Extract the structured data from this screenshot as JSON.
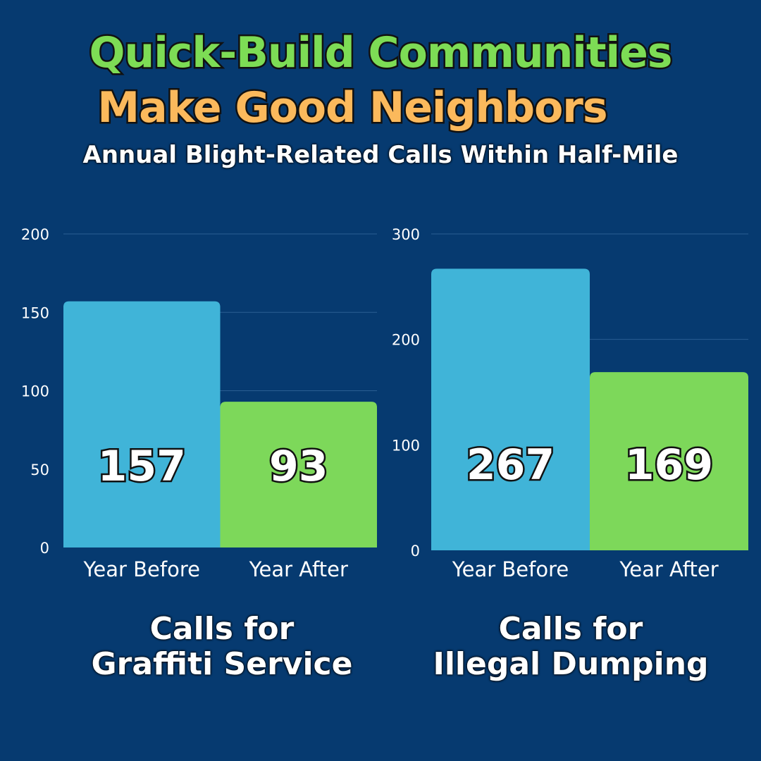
{
  "header": {
    "title_line1": "Quick-Build Communities",
    "title_line2": "Make Good Neighbors",
    "subtitle": "Annual Blight-Related Calls Within Half-Mile"
  },
  "colors": {
    "before": "#40b4d8",
    "after": "#7dd85a",
    "grid": "#2a5e92"
  },
  "chart_data": [
    {
      "type": "bar",
      "categories": [
        "Year Before",
        "Year After"
      ],
      "values": [
        157,
        93
      ],
      "ylim": [
        0,
        200
      ],
      "yticks": [
        0,
        50,
        100,
        150,
        200
      ],
      "caption_line1": "Calls for",
      "caption_line2": "Graffiti Service"
    },
    {
      "type": "bar",
      "categories": [
        "Year Before",
        "Year After"
      ],
      "values": [
        267,
        169
      ],
      "ylim": [
        0,
        300
      ],
      "yticks": [
        0,
        100,
        200,
        300
      ],
      "caption_line1": "Calls for",
      "caption_line2": "Illegal Dumping"
    }
  ]
}
